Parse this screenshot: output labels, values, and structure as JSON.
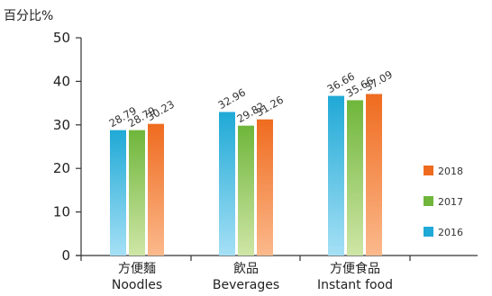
{
  "chart_data": {
    "type": "bar",
    "ylabel": "百分比%",
    "ylim": [
      0,
      50
    ],
    "yticks": [
      0,
      10,
      20,
      30,
      40,
      50
    ],
    "categories": [
      [
        "方便麵",
        "Noodles"
      ],
      [
        "飲品",
        "Beverages"
      ],
      [
        "方便食品",
        "Instant food"
      ]
    ],
    "series": [
      {
        "name": "2016",
        "values": [
          28.79,
          32.96,
          36.66
        ],
        "color_top": "#1fa9d6",
        "color_bottom": "#a5e0f5"
      },
      {
        "name": "2017",
        "values": [
          28.79,
          29.82,
          35.66
        ],
        "color_top": "#6fb63b",
        "color_bottom": "#cfe6a6"
      },
      {
        "name": "2018",
        "values": [
          30.23,
          31.26,
          37.09
        ],
        "color_top": "#ef6b1f",
        "color_bottom": "#fbb98c"
      }
    ],
    "legend_position": "right",
    "grid": false
  }
}
